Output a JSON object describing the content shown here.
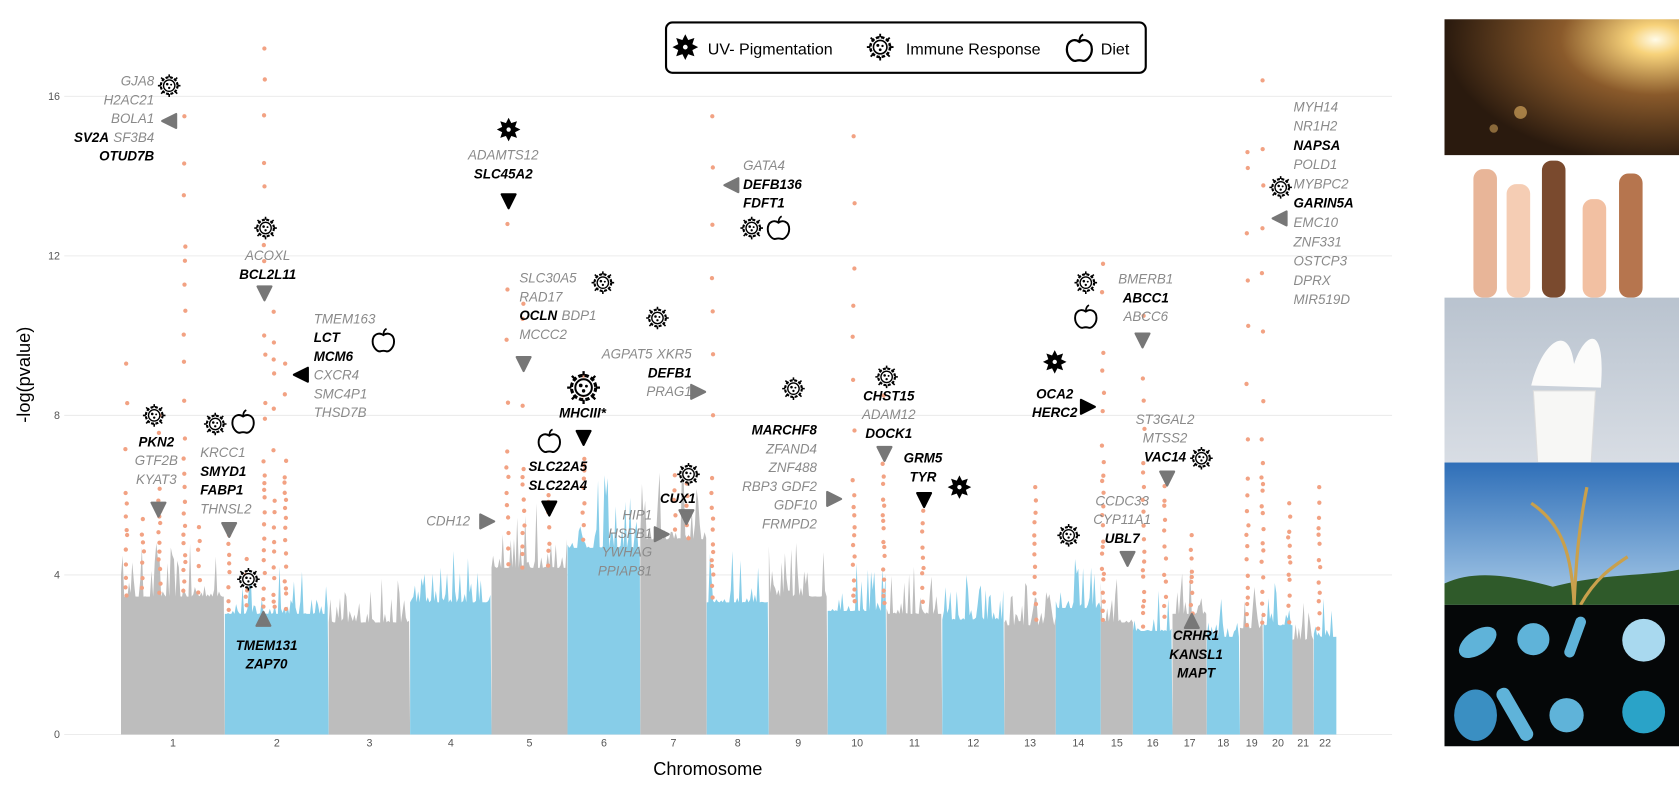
{
  "chart_data": {
    "type": "manhattan",
    "y_label": "-log(pvalue)",
    "x_label": "Chromosome",
    "categories": [
      "1",
      "2",
      "3",
      "4",
      "5",
      "6",
      "7",
      "8",
      "9",
      "10",
      "11",
      "12",
      "13",
      "14",
      "15",
      "16",
      "17",
      "18",
      "19",
      "20",
      "21",
      "22"
    ],
    "values": [
      4.8,
      4.2,
      3.9,
      4.6,
      5.8,
      6.5,
      6.8,
      4.6,
      4.8,
      4.3,
      4.2,
      4.0,
      3.8,
      4.4,
      3.9,
      3.6,
      4.2,
      3.4,
      3.7,
      3.8,
      3.3,
      3.4
    ],
    "colors": [
      "#bdbdbd",
      "#87cde8"
    ],
    "peaks": {
      "color": "#f2a283",
      "chromosomes": [
        "1",
        "1",
        "1",
        "1",
        "1",
        "2",
        "2",
        "2",
        "2",
        "2",
        "5",
        "5",
        "5",
        "6",
        "7",
        "7",
        "8",
        "10",
        "10",
        "11",
        "13",
        "15",
        "16",
        "16",
        "17",
        "19",
        "19",
        "20",
        "22"
      ],
      "values": [
        9.3,
        5.4,
        8.0,
        15.5,
        5.2,
        17.2,
        5.0,
        4.4,
        10.6,
        9.3,
        12.8,
        10.8,
        6.0,
        9.0,
        6.5,
        6.6,
        15.5,
        15.0,
        8.5,
        6.0,
        6.2,
        11.8,
        10.5,
        6.5,
        5.0,
        14.6,
        16.4,
        5.8,
        6.2
      ]
    },
    "ylim": [
      0,
      17.5
    ],
    "yticks": [
      0,
      4,
      8,
      12,
      16
    ],
    "grid": true,
    "legend": [
      "UV- Pigmentation",
      "Immune Response",
      "Diet"
    ],
    "annotations": [
      {
        "lines": [
          [
            "GJA8"
          ],
          [
            "H2AC21"
          ],
          [
            "BOLA1"
          ],
          [
            "SV2A",
            "SF3B4"
          ],
          [
            "OTUD7B"
          ]
        ],
        "bold": [
          [
            false
          ],
          [
            false
          ],
          [
            false
          ],
          [
            true,
            false
          ],
          [
            true
          ]
        ]
      },
      {
        "lines": [
          [
            "ADAMTS12"
          ],
          [
            "SLC45A2"
          ]
        ],
        "bold": [
          [
            false
          ],
          [
            true
          ]
        ]
      },
      {
        "lines": [
          [
            "ACOXL"
          ],
          [
            "BCL2L11"
          ]
        ],
        "bold": [
          [
            false
          ],
          [
            true
          ]
        ]
      },
      {
        "lines": [
          [
            "TMEM163"
          ],
          [
            "LCT"
          ],
          [
            "MCM6"
          ],
          [
            "CXCR4"
          ],
          [
            "SMC4P1"
          ],
          [
            "THSD7B"
          ]
        ],
        "bold": [
          [
            false
          ],
          [
            true
          ],
          [
            true
          ],
          [
            false
          ],
          [
            false
          ],
          [
            false
          ]
        ]
      },
      {
        "lines": [
          [
            "SLC30A5"
          ],
          [
            "RAD17"
          ],
          [
            "OCLN",
            "BDP1"
          ],
          [
            "MCCC2"
          ]
        ],
        "bold": [
          [
            false
          ],
          [
            false
          ],
          [
            true,
            false
          ],
          [
            false
          ]
        ]
      },
      {
        "lines": [
          [
            "AGPAT5",
            "XKR5"
          ],
          [
            "DEFB1"
          ],
          [
            "PRAG1"
          ]
        ],
        "bold": [
          [
            false,
            false
          ],
          [
            true
          ],
          [
            false
          ]
        ]
      },
      {
        "lines": [
          [
            "GATA4"
          ],
          [
            "DEFB136"
          ],
          [
            "FDFT1"
          ]
        ],
        "bold": [
          [
            false
          ],
          [
            true
          ],
          [
            true
          ]
        ]
      },
      {
        "lines": [
          [
            "MHCIII*"
          ]
        ],
        "bold": [
          [
            true
          ]
        ]
      },
      {
        "lines": [
          [
            "SLC22A5"
          ],
          [
            "SLC22A4"
          ]
        ],
        "bold": [
          [
            true
          ],
          [
            true
          ]
        ]
      },
      {
        "lines": [
          [
            "CDH12"
          ]
        ],
        "bold": [
          [
            false
          ]
        ]
      },
      {
        "lines": [
          [
            "HIP1"
          ],
          [
            "HSPB1"
          ],
          [
            "YWHAG"
          ],
          [
            "PPIAP81"
          ]
        ],
        "bold": [
          [
            false
          ],
          [
            false
          ],
          [
            false
          ],
          [
            false
          ]
        ]
      },
      {
        "lines": [
          [
            "CUX1"
          ]
        ],
        "bold": [
          [
            true
          ]
        ]
      },
      {
        "lines": [
          [
            "MARCHF8"
          ],
          [
            "ZFAND4"
          ],
          [
            "ZNF488"
          ],
          [
            "RBP3",
            "GDF2"
          ],
          [
            "GDF10"
          ],
          [
            "FRMPD2"
          ]
        ],
        "bold": [
          [
            true
          ],
          [
            false
          ],
          [
            false
          ],
          [
            false,
            false
          ],
          [
            false
          ],
          [
            false
          ]
        ]
      },
      {
        "lines": [
          [
            "CHST15"
          ],
          [
            "ADAM12"
          ],
          [
            "DOCK1"
          ]
        ],
        "bold": [
          [
            true
          ],
          [
            false
          ],
          [
            true
          ]
        ]
      },
      {
        "lines": [
          [
            "GRM5"
          ],
          [
            "TYR"
          ]
        ],
        "bold": [
          [
            true
          ],
          [
            true
          ]
        ]
      },
      {
        "lines": [
          [
            "OCA2"
          ],
          [
            "HERC2"
          ]
        ],
        "bold": [
          [
            true
          ],
          [
            true
          ]
        ]
      },
      {
        "lines": [
          [
            "BMERB1"
          ],
          [
            "ABCC1"
          ],
          [
            "ABCC6"
          ]
        ],
        "bold": [
          [
            false
          ],
          [
            true
          ],
          [
            false
          ]
        ]
      },
      {
        "lines": [
          [
            "ST3GAL2"
          ],
          [
            "MTSS2"
          ],
          [
            "VAC14"
          ]
        ],
        "bold": [
          [
            false
          ],
          [
            false
          ],
          [
            true
          ]
        ]
      },
      {
        "lines": [
          [
            "CCDC33"
          ],
          [
            "CYP11A1"
          ],
          [
            "UBL7"
          ]
        ],
        "bold": [
          [
            false
          ],
          [
            false
          ],
          [
            true
          ]
        ]
      },
      {
        "lines": [
          [
            "CRHR1"
          ],
          [
            "KANSL1"
          ],
          [
            "MAPT"
          ]
        ],
        "bold": [
          [
            true
          ],
          [
            true
          ],
          [
            true
          ]
        ]
      },
      {
        "lines": [
          [
            "MYH14"
          ],
          [
            "NR1H2"
          ],
          [
            "NAPSA"
          ],
          [
            "POLD1"
          ],
          [
            "MYBPC2"
          ],
          [
            "GARIN5A"
          ],
          [
            "EMC10"
          ],
          [
            "ZNF331"
          ],
          [
            "OSTCP3"
          ],
          [
            "DPRX"
          ],
          [
            "MIR519D"
          ]
        ],
        "bold": [
          [
            false
          ],
          [
            false
          ],
          [
            true
          ],
          [
            false
          ],
          [
            false
          ],
          [
            true
          ],
          [
            false
          ],
          [
            false
          ],
          [
            false
          ],
          [
            false
          ],
          [
            false
          ]
        ]
      },
      {
        "lines": [
          [
            "PKN2"
          ],
          [
            "GTF2B"
          ],
          [
            "KYAT3"
          ]
        ],
        "bold": [
          [
            true
          ],
          [
            false
          ],
          [
            false
          ]
        ]
      },
      {
        "lines": [
          [
            "KRCC1"
          ],
          [
            "SMYD1"
          ],
          [
            "FABP1"
          ],
          [
            "THNSL2"
          ]
        ],
        "bold": [
          [
            false
          ],
          [
            true
          ],
          [
            true
          ],
          [
            false
          ]
        ]
      },
      {
        "lines": [
          [
            "TMEM131"
          ],
          [
            "ZAP70"
          ]
        ],
        "bold": [
          [
            true
          ],
          [
            true
          ]
        ]
      }
    ]
  }
}
